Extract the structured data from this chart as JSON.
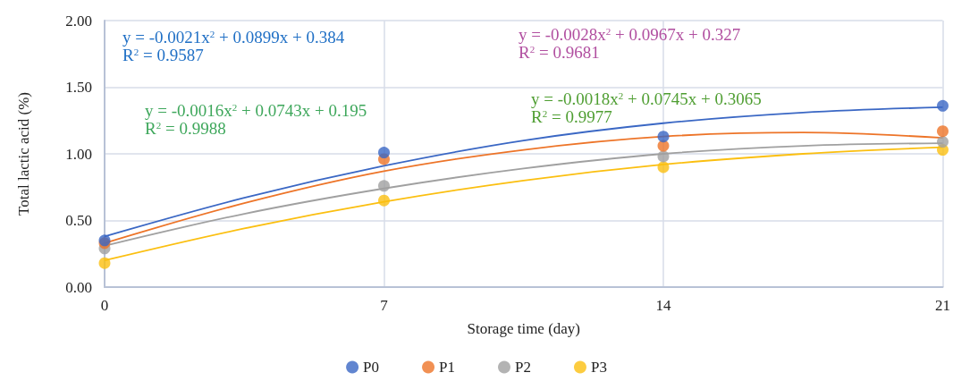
{
  "chart_data": {
    "type": "scatter",
    "xlabel": "Storage time (day)",
    "ylabel": "Total lactic acid (%)",
    "xlim": [
      0,
      21
    ],
    "xticks": [
      0,
      7,
      14,
      21
    ],
    "ylim": [
      0,
      2
    ],
    "yticks": [
      {
        "value": 0,
        "label": "0.00"
      },
      {
        "value": 0.5,
        "label": "0.50"
      },
      {
        "value": 1,
        "label": "1.00"
      },
      {
        "value": 1.5,
        "label": "1.50"
      },
      {
        "value": 2,
        "label": "2.00"
      }
    ],
    "grid": true,
    "legend": "bottom",
    "marker": "circle",
    "series": [
      {
        "name": "P0",
        "color": "#3a67c4",
        "x": [
          0,
          7,
          14,
          21
        ],
        "values": [
          0.35,
          1.01,
          1.13,
          1.36
        ]
      },
      {
        "name": "P1",
        "color": "#ed7428",
        "x": [
          0,
          7,
          14,
          21
        ],
        "values": [
          0.33,
          0.96,
          1.06,
          1.17
        ]
      },
      {
        "name": "P2",
        "color": "#a0a0a0",
        "x": [
          0,
          7,
          14,
          21
        ],
        "values": [
          0.29,
          0.76,
          0.98,
          1.09
        ]
      },
      {
        "name": "P3",
        "color": "#fbbf10",
        "x": [
          0,
          7,
          14,
          21
        ],
        "values": [
          0.18,
          0.65,
          0.9,
          1.03
        ]
      },
      {
        "type": "line",
        "marker": "none",
        "color": "#3a67c4",
        "x": [
          0,
          3.5,
          7,
          10.5,
          14,
          17.5,
          21
        ],
        "values": [
          0.38,
          0.67,
          0.91,
          1.1,
          1.23,
          1.31,
          1.35
        ]
      },
      {
        "type": "line",
        "marker": "none",
        "color": "#ed7428",
        "x": [
          0,
          3.5,
          7,
          10.5,
          14,
          17.5,
          21
        ],
        "values": [
          0.33,
          0.63,
          0.87,
          1.03,
          1.13,
          1.16,
          1.12
        ]
      },
      {
        "type": "line",
        "marker": "none",
        "color": "#a0a0a0",
        "x": [
          0,
          3.5,
          7,
          10.5,
          14,
          17.5,
          21
        ],
        "values": [
          0.31,
          0.55,
          0.74,
          0.89,
          1.0,
          1.06,
          1.08
        ]
      },
      {
        "type": "line",
        "marker": "none",
        "color": "#fbbf10",
        "x": [
          0,
          3.5,
          7,
          10.5,
          14,
          17.5,
          21
        ],
        "values": [
          0.2,
          0.44,
          0.64,
          0.8,
          0.92,
          1.0,
          1.05
        ]
      }
    ],
    "annotations": [
      "y = -0.0021x$^{2}$ + 0.0899x + 0.384",
      "R$^{2}$ = 0.9587",
      "y = -0.0016x$^{2}$ + 0.0743x + 0.195",
      "R$^{2}$ = 0.9988",
      "y = -0.0028x$^{2}$ + 0.0967x + 0.327",
      "R$^{2}$ = 0.9681",
      "y = -0.0018x$^{2}$ + 0.0745x + 0.3065",
      "R$^{2}$ = 0.9977"
    ]
  }
}
